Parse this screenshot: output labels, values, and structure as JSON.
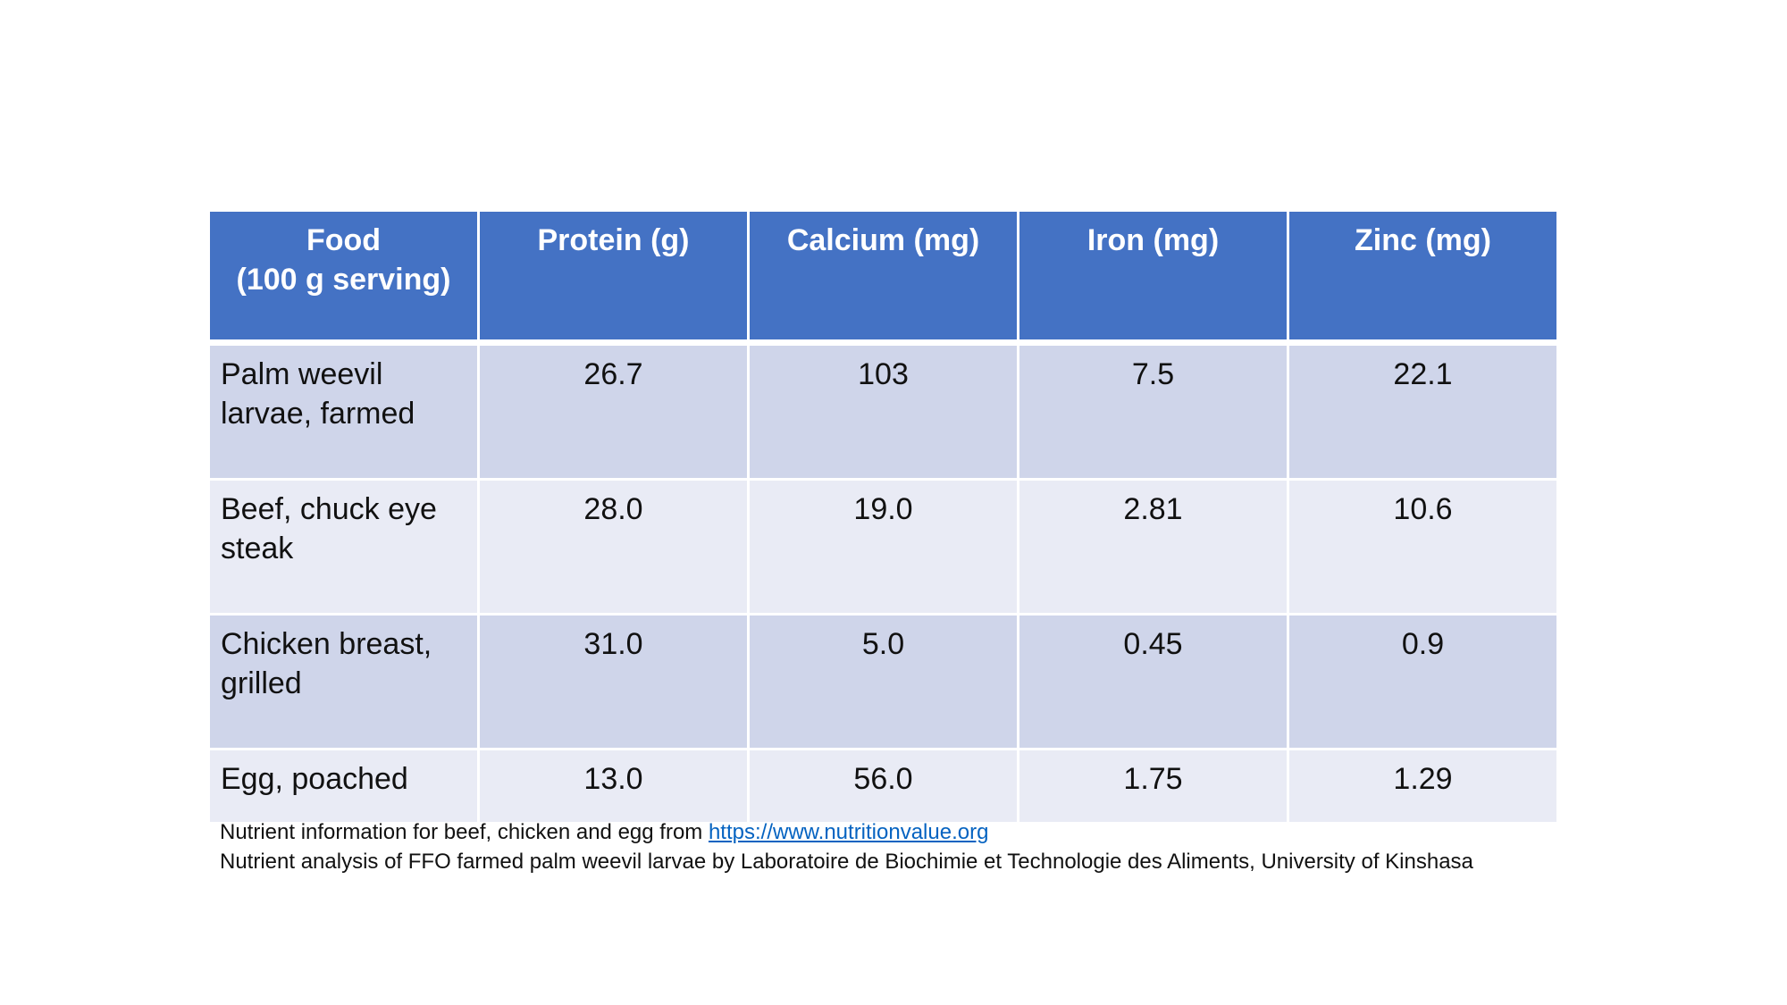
{
  "table": {
    "headers": [
      {
        "lines": [
          "Food",
          "(100 g serving)"
        ]
      },
      {
        "lines": [
          "Protein (g)"
        ]
      },
      {
        "lines": [
          "Calcium (mg)"
        ]
      },
      {
        "lines": [
          "Iron (mg)"
        ]
      },
      {
        "lines": [
          "Zinc (mg)"
        ]
      }
    ],
    "rows": [
      {
        "food": "Palm weevil larvae, farmed",
        "protein": "26.7",
        "calcium": "103",
        "iron": "7.5",
        "zinc": "22.1"
      },
      {
        "food": "Beef, chuck eye steak",
        "protein": "28.0",
        "calcium": "19.0",
        "iron": "2.81",
        "zinc": "10.6"
      },
      {
        "food": "Chicken breast, grilled",
        "protein": "31.0",
        "calcium": "5.0",
        "iron": "0.45",
        "zinc": "0.9"
      },
      {
        "food": "Egg, poached",
        "protein": "13.0",
        "calcium": "56.0",
        "iron": "1.75",
        "zinc": "1.29"
      }
    ]
  },
  "footnotes": {
    "line1_text": "Nutrient information for beef, chicken and egg from ",
    "line1_link": "https://www.nutritionvalue.org",
    "line2_text": "Nutrient analysis of FFO farmed palm weevil larvae by Laboratoire de Biochimie et Technologie des Aliments, University of Kinshasa"
  },
  "colors": {
    "header_bg": "#4472c4",
    "row_odd_bg": "#cfd5ea",
    "row_even_bg": "#e9ebf5",
    "link": "#0563c1"
  }
}
